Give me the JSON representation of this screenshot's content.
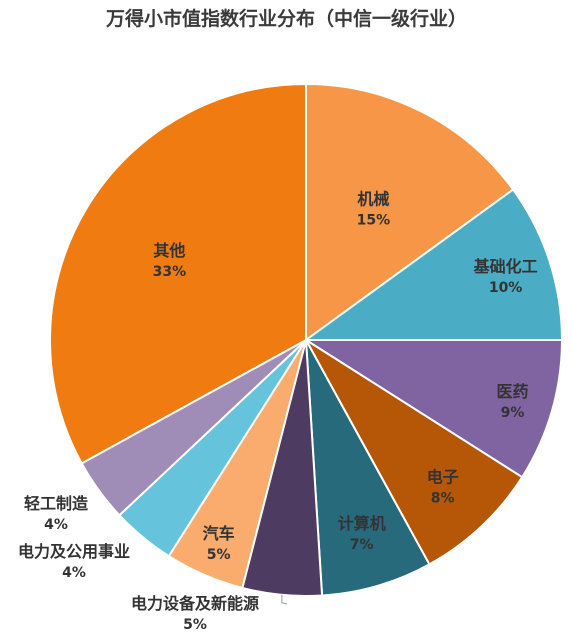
{
  "chart_data": {
    "type": "pie",
    "title": "万得小市值指数行业分布（中信一级行业）",
    "slices": [
      {
        "label": "机械",
        "value": 15,
        "value_label": "15%",
        "color": "#F79646"
      },
      {
        "label": "基础化工",
        "value": 10,
        "value_label": "10%",
        "color": "#4BACC6"
      },
      {
        "label": "医药",
        "value": 9,
        "value_label": "9%",
        "color": "#8064A2"
      },
      {
        "label": "电子",
        "value": 8,
        "value_label": "8%",
        "color": "#B65708"
      },
      {
        "label": "计算机",
        "value": 7,
        "value_label": "7%",
        "color": "#276A7C"
      },
      {
        "label": "电力设备及新能源",
        "value": 5,
        "value_label": "5%",
        "color": "#4E3B62"
      },
      {
        "label": "汽车",
        "value": 5,
        "value_label": "5%",
        "color": "#F9AC6D"
      },
      {
        "label": "电力及公用事业",
        "value": 4,
        "value_label": "4%",
        "color": "#66C3DC"
      },
      {
        "label": "轻工制造",
        "value": 4,
        "value_label": "4%",
        "color": "#9F8CB7"
      },
      {
        "label": "其他",
        "value": 33,
        "value_label": "33%",
        "color": "#F07B10"
      }
    ],
    "start_angle_deg": 0,
    "direction": "clockwise",
    "legend": "none"
  }
}
